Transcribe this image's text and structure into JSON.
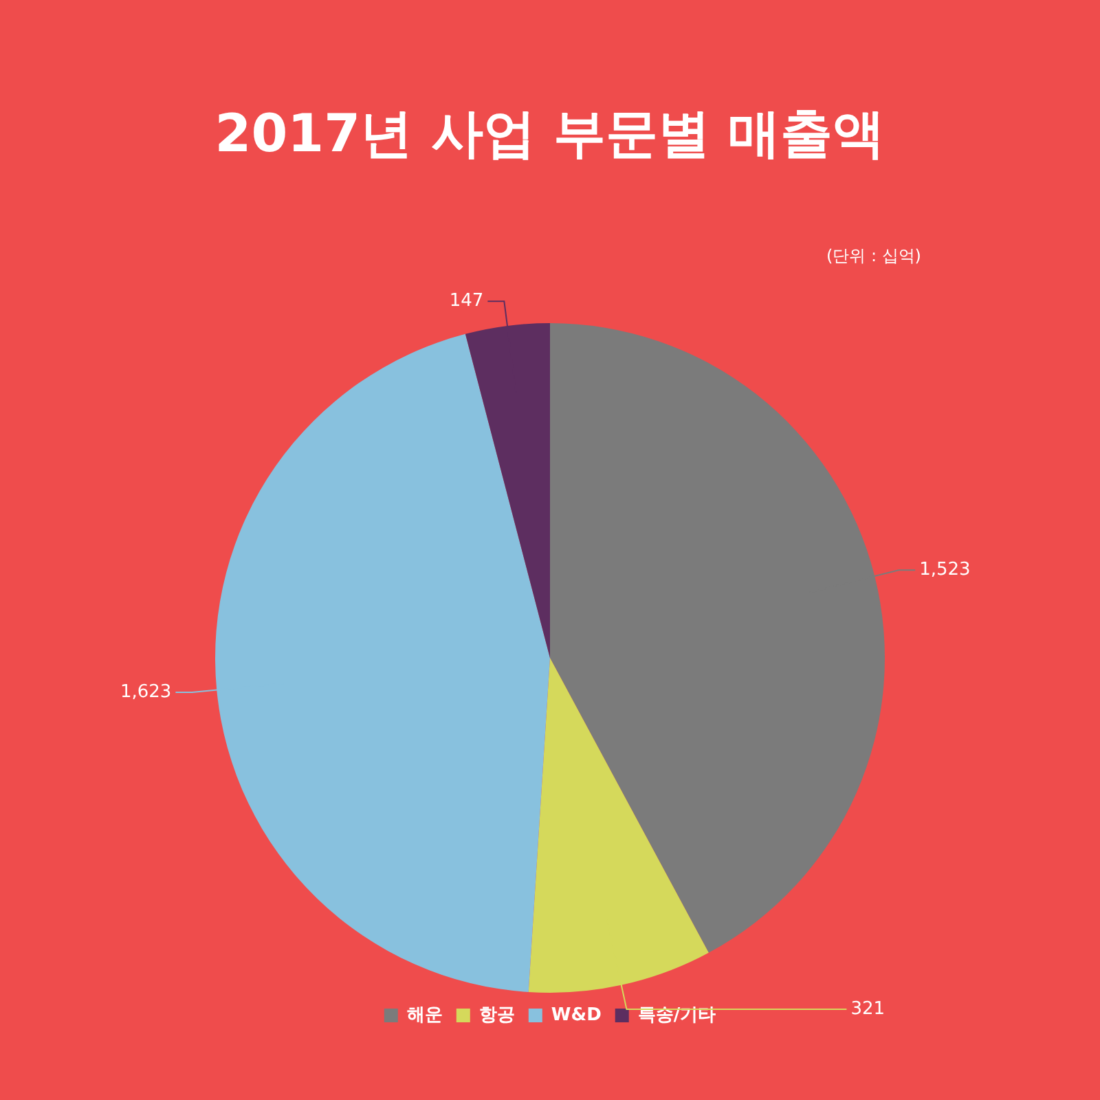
{
  "chart_data": {
    "type": "pie",
    "title": "2017년 사업 부문별 매출액",
    "annotations": [
      "(단위 : 십억)"
    ],
    "categories": [
      "해운",
      "항공",
      "W&D",
      "특송/기타"
    ],
    "values": [
      1523,
      321,
      1623,
      147
    ],
    "colors": [
      "#7b7b7b",
      "#d5d95b",
      "#88c1de",
      "#5d2e60"
    ],
    "value_labels": [
      "1,523",
      "321",
      "1,623",
      "147"
    ],
    "legend": "bottom"
  }
}
